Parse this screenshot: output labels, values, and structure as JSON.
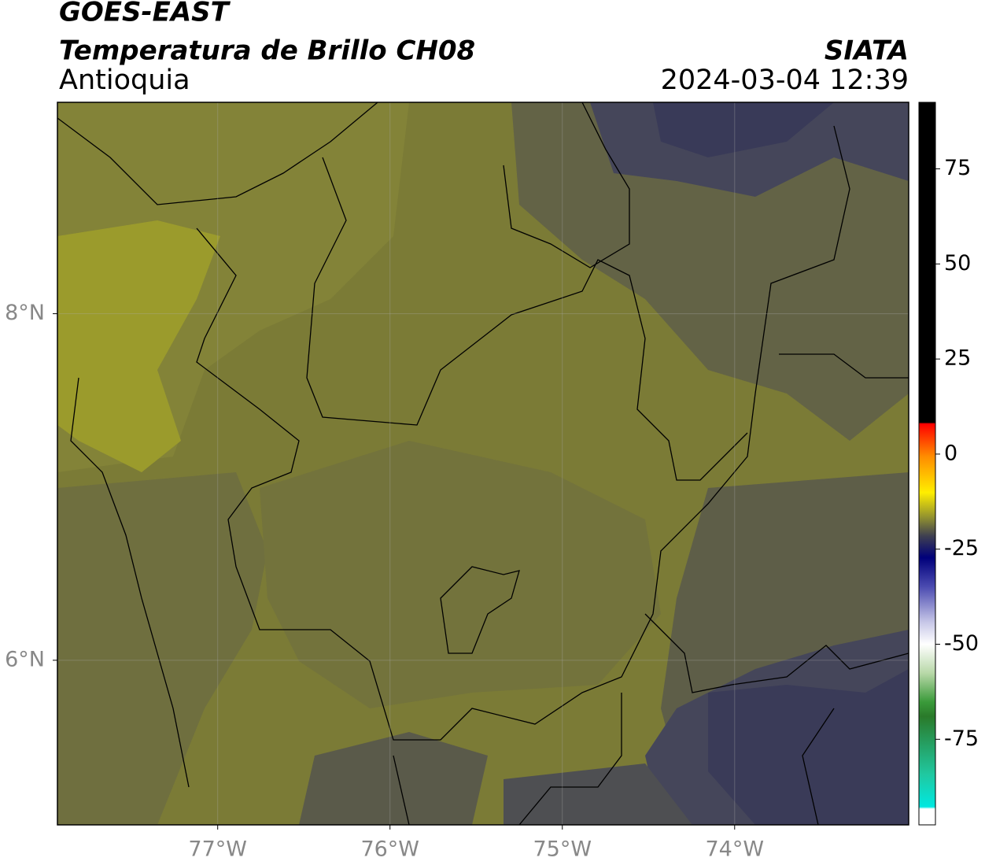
{
  "map": {
    "title": "GOES-EAST",
    "subtitle": "Temperatura de Brillo CH08",
    "region": "Antioquia",
    "source": "SIATA",
    "datetime": "2024-03-04 12:39",
    "xlim": [
      -77.93,
      -72.99
    ],
    "ylim": [
      5.05,
      9.22
    ],
    "xticks": [
      {
        "value": -77,
        "label": "77°W"
      },
      {
        "value": -76,
        "label": "76°W"
      },
      {
        "value": -75,
        "label": "75°W"
      },
      {
        "value": -74,
        "label": "74°W"
      }
    ],
    "yticks": [
      {
        "value": 6,
        "label": "6°N"
      },
      {
        "value": 8,
        "label": "8°N"
      }
    ],
    "grid": true,
    "colorbar": {
      "lim": [
        -97.5,
        92.5
      ],
      "ticks": [
        -75,
        -50,
        -25,
        0,
        25,
        50,
        75
      ]
    }
  }
}
